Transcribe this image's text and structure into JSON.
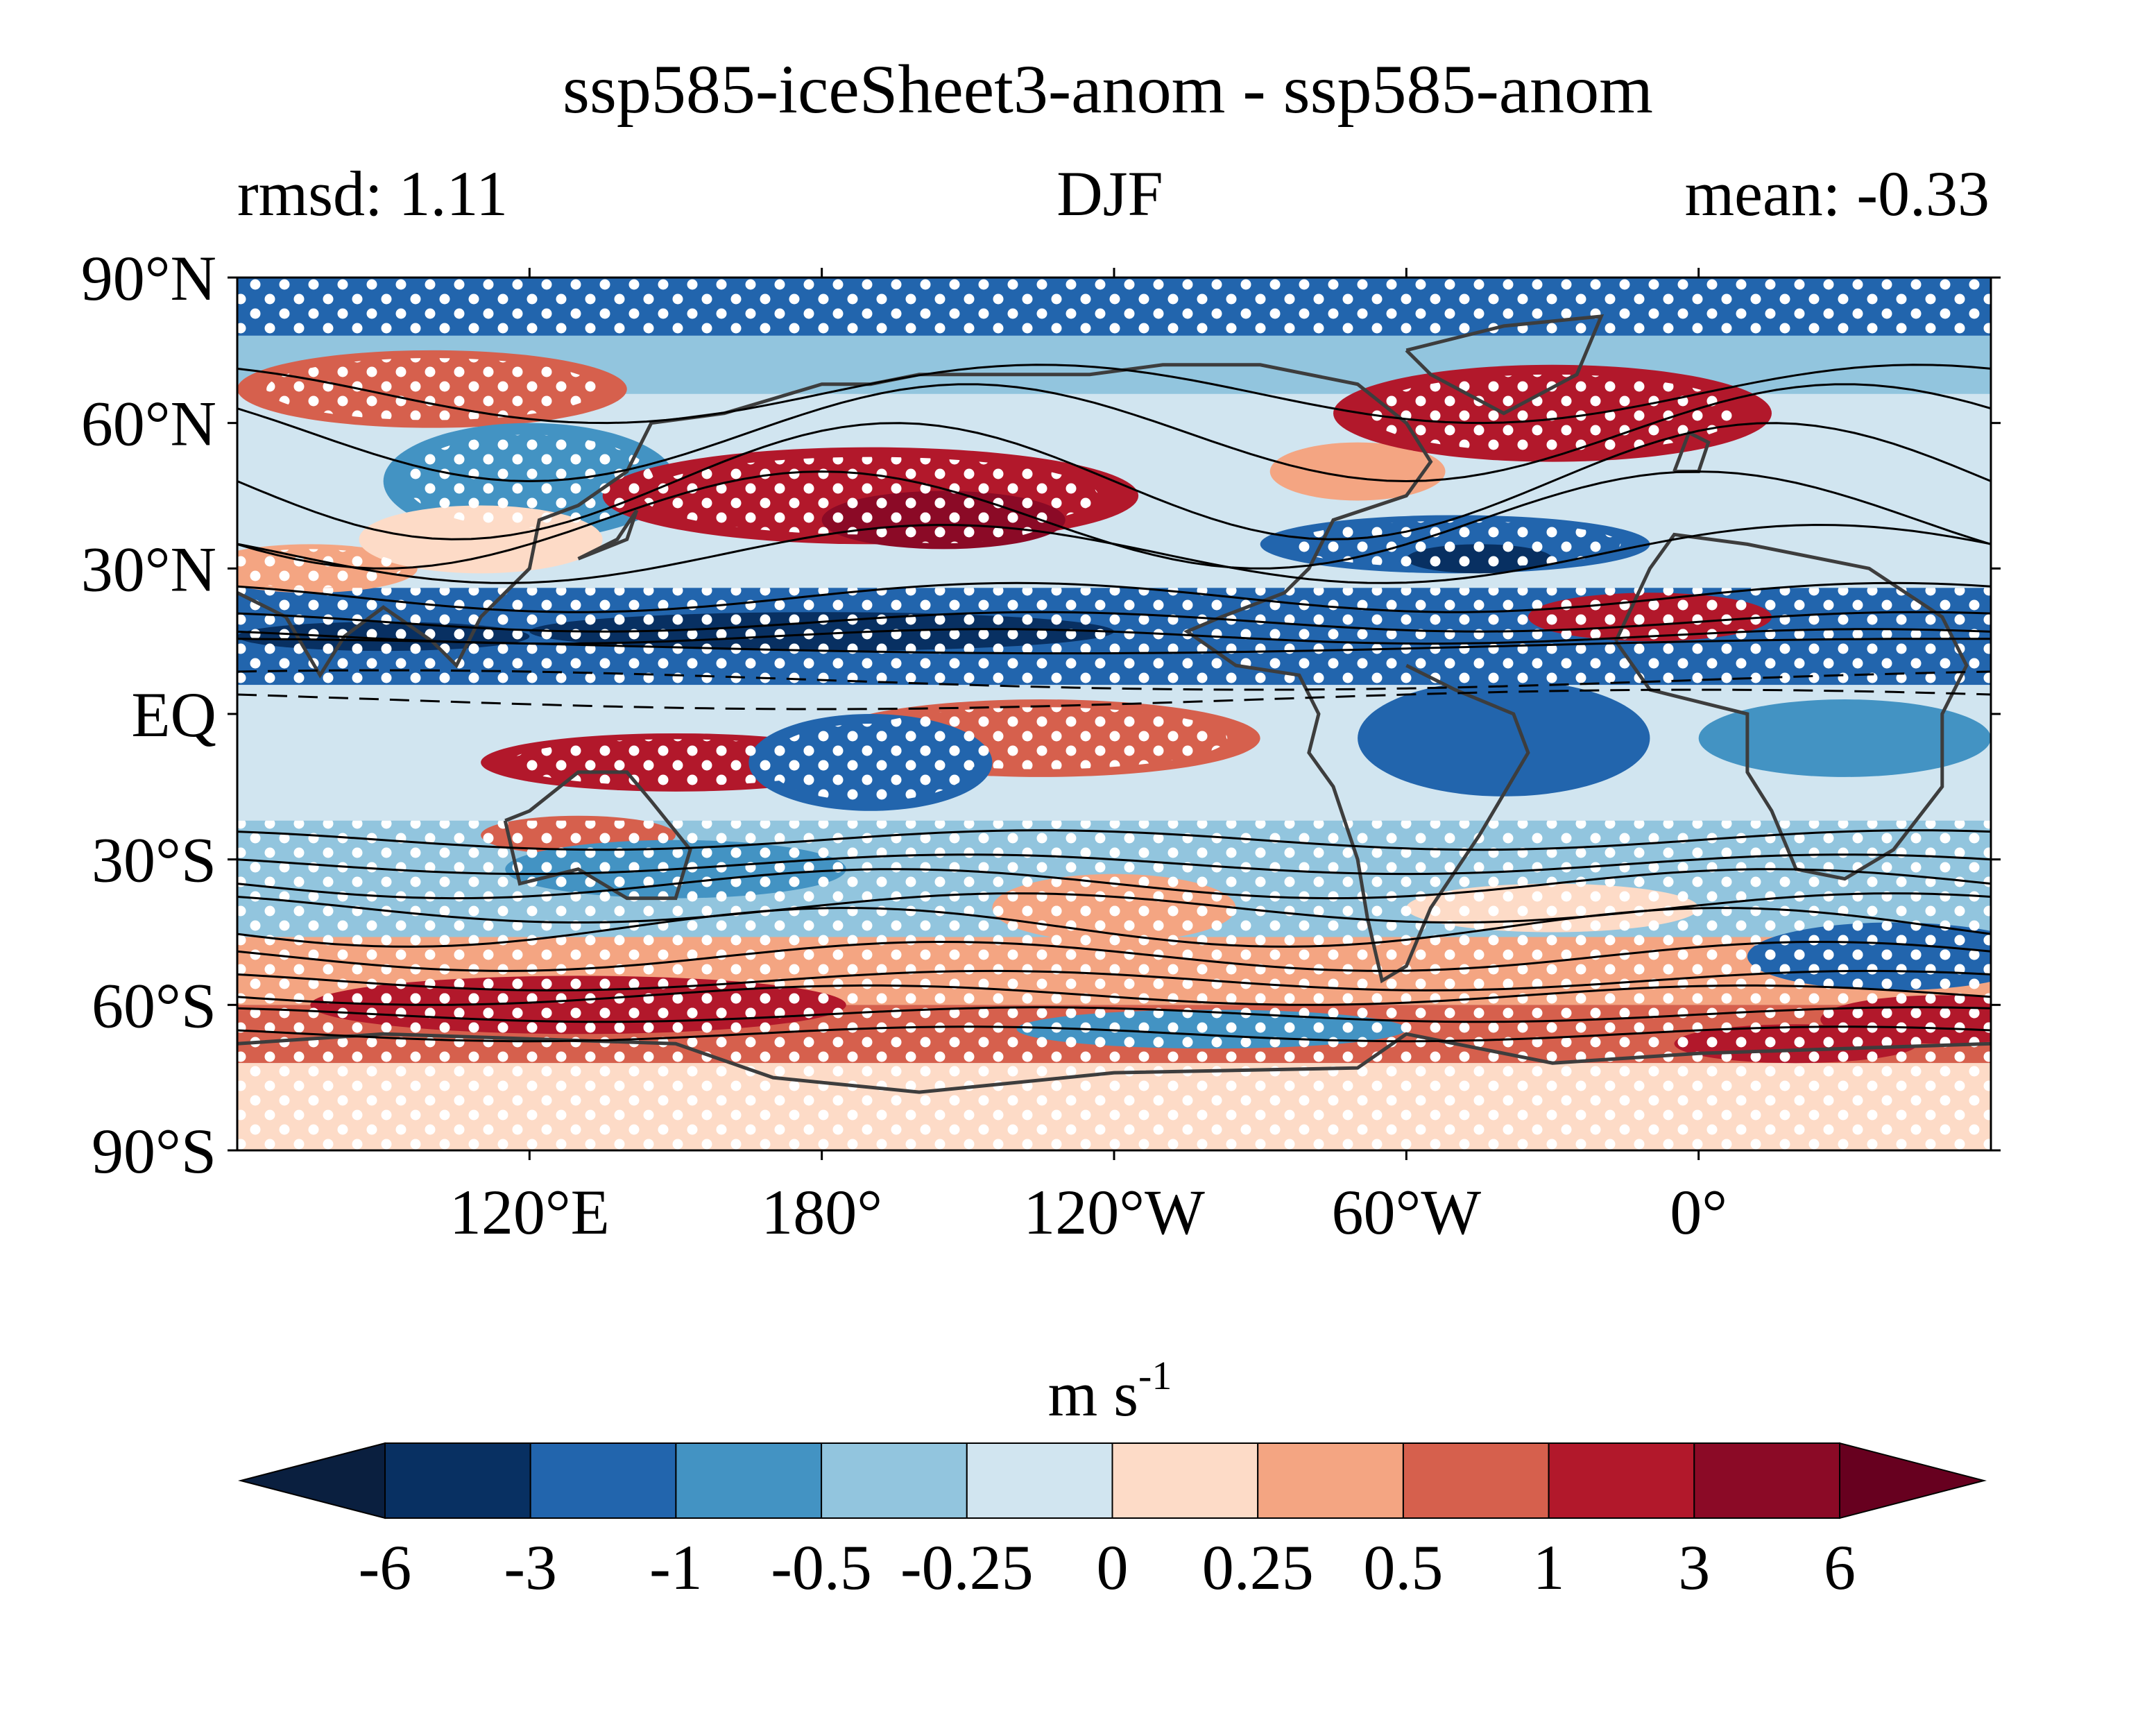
{
  "title": "ssp585-iceSheet3-anom - ssp585-anom",
  "subtitle_left": "rmsd: 1.11",
  "subtitle_center": "DJF",
  "subtitle_right": "mean: -0.33",
  "map": {
    "projection": "plate-carree",
    "lon_range": [
      60,
      420
    ],
    "lat_range": [
      -90,
      90
    ],
    "lat_ticks": [
      {
        "value": 90,
        "label": "90°N"
      },
      {
        "value": 60,
        "label": "60°N"
      },
      {
        "value": 30,
        "label": "30°N"
      },
      {
        "value": 0,
        "label": "EQ"
      },
      {
        "value": -30,
        "label": "30°S"
      },
      {
        "value": -60,
        "label": "60°S"
      },
      {
        "value": -90,
        "label": "90°S"
      }
    ],
    "lon_ticks": [
      {
        "value": 120,
        "label": "120°E"
      },
      {
        "value": 180,
        "label": "180°"
      },
      {
        "value": 240,
        "label": "120°W"
      },
      {
        "value": 300,
        "label": "60°W"
      },
      {
        "value": 360,
        "label": "0°"
      }
    ],
    "stippling": "white dots mark significant regions",
    "overlay": "black climatology contours, dashed negative"
  },
  "colorbar": {
    "units_base": "m s",
    "units_exp": "-1",
    "extend": "both",
    "under_color": "#0a1f3f",
    "over_color": "#67001f",
    "colors": [
      "#083062",
      "#2265ad",
      "#4393c3",
      "#92c5de",
      "#d1e5f0",
      "#fddbc7",
      "#f4a582",
      "#d6604d",
      "#b2182b",
      "#8b0a26"
    ],
    "tick_labels": [
      "-6",
      "-3",
      "-1",
      "-0.5",
      "-0.25",
      "0",
      "0.25",
      "0.5",
      "1",
      "3",
      "6"
    ]
  }
}
